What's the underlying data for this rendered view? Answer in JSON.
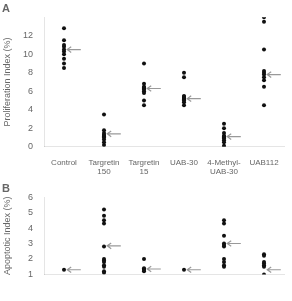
{
  "chart_data": [
    {
      "type": "dot",
      "title": "A",
      "categories": [
        "Control",
        "Targretin\n150",
        "Targretin\n15",
        "UAB-30",
        "4-Methyl-\nUAB-30",
        "UAB112"
      ],
      "ylabel": "Proliferation Index (%)",
      "ylim": [
        0,
        14
      ],
      "yticks": [
        0,
        2,
        4,
        6,
        8,
        10,
        12
      ],
      "grid": false,
      "series": [
        {
          "type": "scatter",
          "color": "#111111",
          "values": [
            [
              8.5,
              9.0,
              9.5,
              10.0,
              10.3,
              10.5,
              10.8,
              11.0,
              11.5,
              12.8
            ],
            [
              0.2,
              0.5,
              0.8,
              1.0,
              1.1,
              1.2,
              1.3,
              1.5,
              1.8,
              3.5
            ],
            [
              4.5,
              5.0,
              5.8,
              6.0,
              6.2,
              6.3,
              6.4,
              6.5,
              6.8,
              9.0
            ],
            [
              4.5,
              4.8,
              5.0,
              5.1,
              5.2,
              5.3,
              5.4,
              5.5,
              7.5,
              8.0
            ],
            [
              0.1,
              0.5,
              0.7,
              0.9,
              1.0,
              1.1,
              1.2,
              1.5,
              2.0,
              2.5
            ],
            [
              4.5,
              6.5,
              7.2,
              7.5,
              7.8,
              8.0,
              8.2,
              10.5,
              13.5,
              14.0
            ]
          ]
        },
        {
          "type": "arrow",
          "color": "#999999",
          "values": [
            10.5,
            1.4,
            6.3,
            5.2,
            1.1,
            7.8
          ]
        }
      ]
    },
    {
      "type": "dot",
      "title": "B",
      "categories": [
        null,
        null,
        null,
        null,
        null,
        null
      ],
      "ylabel": "Apoptotic Index (%)",
      "ylim": [
        1,
        6
      ],
      "yticks": [
        1,
        2,
        3,
        4,
        5,
        6
      ],
      "grid": false,
      "series": [
        {
          "type": "scatter",
          "color": "#111111",
          "values": [
            [
              1.3
            ],
            [
              1.1,
              1.2,
              1.5,
              1.6,
              1.8,
              1.9,
              2.0,
              2.8,
              4.3,
              4.5,
              4.8,
              5.2
            ],
            [
              1.2,
              1.3,
              1.35,
              1.4,
              2.0
            ],
            [
              1.3
            ],
            [
              1.5,
              1.6,
              1.8,
              2.0,
              2.8,
              2.9,
              3.0,
              3.5,
              4.3,
              4.5
            ],
            [
              1.0,
              1.5,
              1.6,
              1.7,
              1.8,
              2.2,
              2.3
            ]
          ]
        },
        {
          "type": "arrow",
          "color": "#999999",
          "values": [
            1.3,
            2.85,
            1.35,
            1.3,
            3.0,
            1.3
          ]
        }
      ]
    }
  ]
}
